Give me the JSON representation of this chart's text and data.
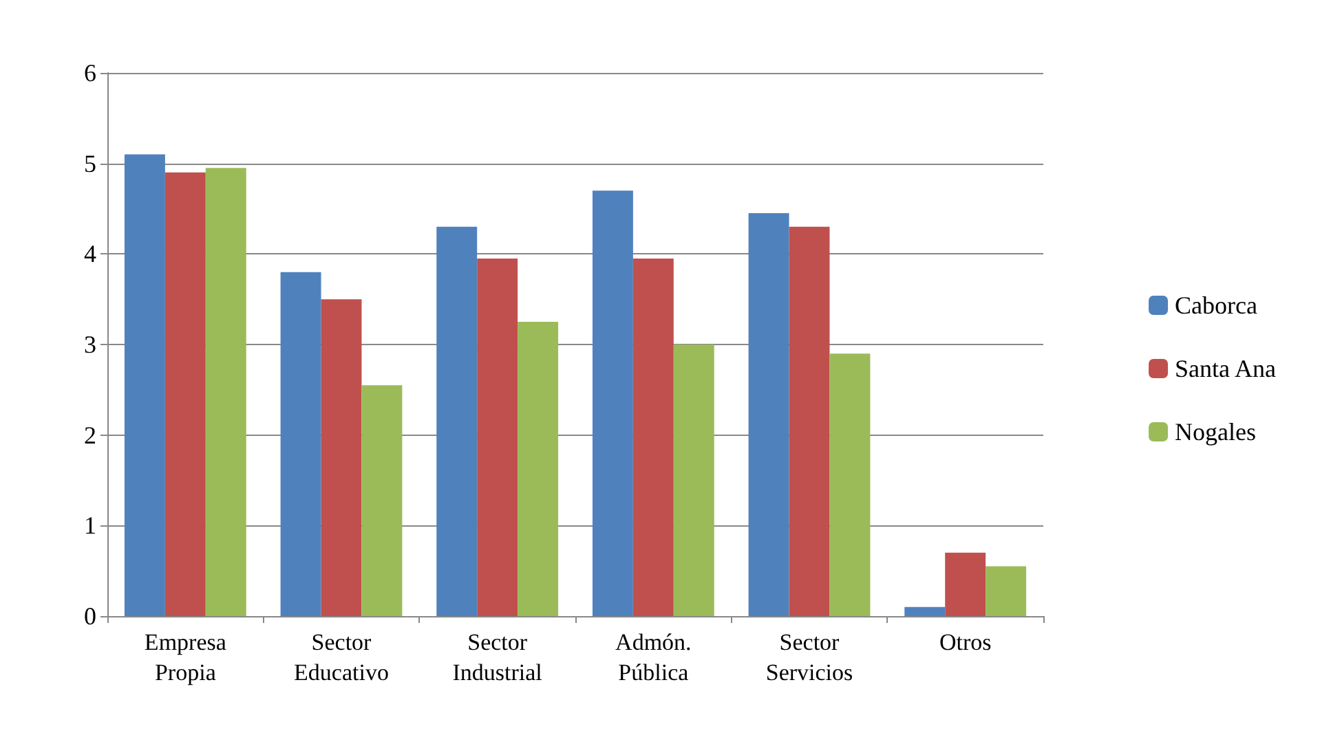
{
  "chart_data": {
    "type": "bar",
    "categories": [
      "Empresa Propia",
      "Sector Educativo",
      "Sector Industrial",
      "Admón. Pública",
      "Sector Servicios",
      "Otros"
    ],
    "series": [
      {
        "name": "Caborca",
        "color": "#4f81bd",
        "values": [
          5.1,
          3.8,
          4.3,
          4.7,
          4.45,
          0.1
        ]
      },
      {
        "name": "Santa Ana",
        "color": "#c0504d",
        "values": [
          4.9,
          3.5,
          3.95,
          3.95,
          4.3,
          0.7
        ]
      },
      {
        "name": "Nogales",
        "color": "#9bbb59",
        "values": [
          4.95,
          2.55,
          3.25,
          3.0,
          2.9,
          0.55
        ]
      }
    ],
    "ylim": [
      0,
      6
    ],
    "yticks": [
      0,
      1,
      2,
      3,
      4,
      5,
      6
    ],
    "grid": "y",
    "legend": "right"
  }
}
